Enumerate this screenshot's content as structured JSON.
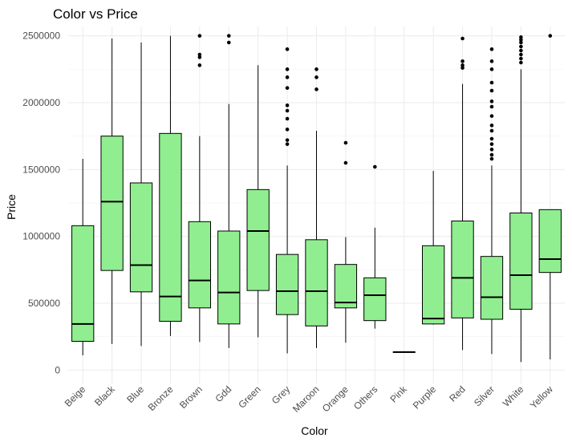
{
  "chart_data": {
    "type": "boxplot",
    "title": "Color vs Price",
    "xlabel": "Color",
    "ylabel": "Price",
    "ylim": [
      -100000,
      2570000
    ],
    "yticks": [
      0,
      500000,
      1000000,
      1500000,
      2000000,
      2500000
    ],
    "ytick_labels": [
      "0",
      "500000",
      "1000000",
      "1500000",
      "2000000",
      "2500000"
    ],
    "grid": true,
    "box_color": "#90ee90",
    "categories": [
      "Beige",
      "Black",
      "Blue",
      "Bronze",
      "Brown",
      "Gdd",
      "Green",
      "Grey",
      "Maroon",
      "Orange",
      "Others",
      "Pink",
      "Purple",
      "Red",
      "Silver",
      "White",
      "Yellow"
    ],
    "boxes": [
      {
        "category": "Beige",
        "whisker_low": 110000,
        "q1": 215000,
        "median": 345000,
        "q3": 1080000,
        "whisker_high": 1580000,
        "outliers": []
      },
      {
        "category": "Black",
        "whisker_low": 195000,
        "q1": 745000,
        "median": 1260000,
        "q3": 1750000,
        "whisker_high": 2480000,
        "outliers": []
      },
      {
        "category": "Blue",
        "whisker_low": 180000,
        "q1": 585000,
        "median": 785000,
        "q3": 1400000,
        "whisker_high": 2450000,
        "outliers": []
      },
      {
        "category": "Bronze",
        "whisker_low": 255000,
        "q1": 365000,
        "median": 550000,
        "q3": 1770000,
        "whisker_high": 2500000,
        "outliers": []
      },
      {
        "category": "Brown",
        "whisker_low": 210000,
        "q1": 465000,
        "median": 670000,
        "q3": 1110000,
        "whisker_high": 1750000,
        "outliers": [
          2280000,
          2340000,
          2360000,
          2500000
        ]
      },
      {
        "category": "Gdd",
        "whisker_low": 165000,
        "q1": 345000,
        "median": 580000,
        "q3": 1040000,
        "whisker_high": 1990000,
        "outliers": [
          2450000,
          2500000
        ]
      },
      {
        "category": "Green",
        "whisker_low": 245000,
        "q1": 595000,
        "median": 1040000,
        "q3": 1350000,
        "whisker_high": 2280000,
        "outliers": []
      },
      {
        "category": "Grey",
        "whisker_low": 125000,
        "q1": 415000,
        "median": 590000,
        "q3": 865000,
        "whisker_high": 1530000,
        "outliers": [
          1690000,
          1720000,
          1800000,
          1880000,
          1940000,
          1980000,
          2110000,
          2190000,
          2250000,
          2400000
        ]
      },
      {
        "category": "Maroon",
        "whisker_low": 165000,
        "q1": 330000,
        "median": 590000,
        "q3": 975000,
        "whisker_high": 1790000,
        "outliers": [
          2100000,
          2190000,
          2250000
        ]
      },
      {
        "category": "Orange",
        "whisker_low": 205000,
        "q1": 465000,
        "median": 505000,
        "q3": 790000,
        "whisker_high": 995000,
        "outliers": [
          1550000,
          1700000
        ]
      },
      {
        "category": "Others",
        "whisker_low": 310000,
        "q1": 370000,
        "median": 560000,
        "q3": 690000,
        "whisker_high": 1065000,
        "outliers": [
          1520000
        ]
      },
      {
        "category": "Pink",
        "whisker_low": 135000,
        "q1": 135000,
        "median": 135000,
        "q3": 135000,
        "whisker_high": 135000,
        "outliers": []
      },
      {
        "category": "Purple",
        "whisker_low": 340000,
        "q1": 345000,
        "median": 385000,
        "q3": 930000,
        "whisker_high": 1490000,
        "outliers": []
      },
      {
        "category": "Red",
        "whisker_low": 150000,
        "q1": 390000,
        "median": 690000,
        "q3": 1115000,
        "whisker_high": 2140000,
        "outliers": [
          2260000,
          2280000,
          2310000,
          2480000
        ]
      },
      {
        "category": "Silver",
        "whisker_low": 120000,
        "q1": 380000,
        "median": 545000,
        "q3": 850000,
        "whisker_high": 1530000,
        "outliers": [
          1580000,
          1610000,
          1650000,
          1690000,
          1730000,
          1790000,
          1830000,
          1900000,
          1970000,
          2010000,
          2090000,
          2150000,
          2250000,
          2310000,
          2400000
        ]
      },
      {
        "category": "White",
        "whisker_low": 60000,
        "q1": 455000,
        "median": 710000,
        "q3": 1175000,
        "whisker_high": 2250000,
        "outliers": [
          2300000,
          2330000,
          2360000,
          2390000,
          2420000,
          2450000,
          2470000,
          2490000
        ]
      },
      {
        "category": "Yellow",
        "whisker_low": 80000,
        "q1": 730000,
        "median": 830000,
        "q3": 1200000,
        "whisker_high": 1200000,
        "outliers": [
          2500000
        ]
      }
    ]
  }
}
